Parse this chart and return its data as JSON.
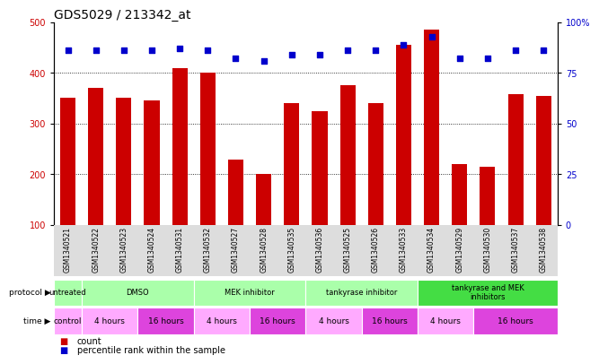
{
  "title": "GDS5029 / 213342_at",
  "samples": [
    "GSM1340521",
    "GSM1340522",
    "GSM1340523",
    "GSM1340524",
    "GSM1340531",
    "GSM1340532",
    "GSM1340527",
    "GSM1340528",
    "GSM1340535",
    "GSM1340536",
    "GSM1340525",
    "GSM1340526",
    "GSM1340533",
    "GSM1340534",
    "GSM1340529",
    "GSM1340530",
    "GSM1340537",
    "GSM1340538"
  ],
  "bar_values": [
    350,
    370,
    350,
    345,
    410,
    400,
    228,
    200,
    340,
    325,
    375,
    340,
    455,
    485,
    220,
    215,
    358,
    355
  ],
  "percentile_values": [
    86,
    86,
    86,
    86,
    87,
    86,
    82,
    81,
    84,
    84,
    86,
    86,
    89,
    93,
    82,
    82,
    86,
    86
  ],
  "bar_color": "#cc0000",
  "dot_color": "#0000cc",
  "ylim_left": [
    100,
    500
  ],
  "ylim_right": [
    0,
    100
  ],
  "yticks_left": [
    100,
    200,
    300,
    400,
    500
  ],
  "yticks_right": [
    0,
    25,
    50,
    75,
    100
  ],
  "ytick_labels_right": [
    "0",
    "25",
    "50",
    "75",
    "100%"
  ],
  "grid_values": [
    200,
    300,
    400
  ],
  "protocol_groups": [
    {
      "label": "untreated",
      "start": 0,
      "end": 1,
      "color": "#aaffaa"
    },
    {
      "label": "DMSO",
      "start": 1,
      "end": 5,
      "color": "#aaffaa"
    },
    {
      "label": "MEK inhibitor",
      "start": 5,
      "end": 9,
      "color": "#aaffaa"
    },
    {
      "label": "tankyrase inhibitor",
      "start": 9,
      "end": 13,
      "color": "#aaffaa"
    },
    {
      "label": "tankyrase and MEK\ninhibitors",
      "start": 13,
      "end": 18,
      "color": "#44dd44"
    }
  ],
  "time_groups": [
    {
      "label": "control",
      "start": 0,
      "end": 1,
      "color": "#ffaaff"
    },
    {
      "label": "4 hours",
      "start": 1,
      "end": 3,
      "color": "#ffaaff"
    },
    {
      "label": "16 hours",
      "start": 3,
      "end": 5,
      "color": "#dd44dd"
    },
    {
      "label": "4 hours",
      "start": 5,
      "end": 7,
      "color": "#ffaaff"
    },
    {
      "label": "16 hours",
      "start": 7,
      "end": 9,
      "color": "#dd44dd"
    },
    {
      "label": "4 hours",
      "start": 9,
      "end": 11,
      "color": "#ffaaff"
    },
    {
      "label": "16 hours",
      "start": 11,
      "end": 13,
      "color": "#dd44dd"
    },
    {
      "label": "4 hours",
      "start": 13,
      "end": 15,
      "color": "#ffaaff"
    },
    {
      "label": "16 hours",
      "start": 15,
      "end": 18,
      "color": "#dd44dd"
    }
  ],
  "bar_color_left": "#cc0000",
  "tick_color_left": "#cc0000",
  "tick_color_right": "#0000cc",
  "legend_items": [
    {
      "label": "count",
      "color": "#cc0000"
    },
    {
      "label": "percentile rank within the sample",
      "color": "#0000cc"
    }
  ],
  "title_fontsize": 10,
  "tick_fontsize": 7,
  "bar_width": 0.55,
  "label_bg_color": "#dddddd",
  "fig_bg_color": "#ffffff"
}
